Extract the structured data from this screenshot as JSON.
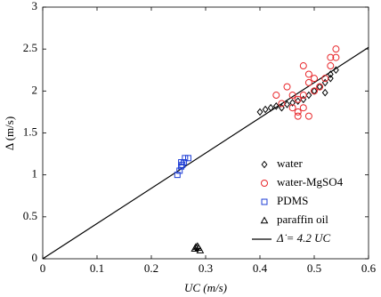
{
  "chart_data": {
    "type": "scatter",
    "xlabel": "UC (m/s)",
    "ylabel": "Δ (m/s)",
    "xlim": [
      0,
      0.6
    ],
    "xticks": [
      0,
      0.1,
      0.2,
      0.3,
      0.4,
      0.5,
      0.6
    ],
    "ylim": [
      0,
      3
    ],
    "yticks": [
      0,
      0.5,
      1,
      1.5,
      2,
      2.5,
      3
    ],
    "grid": false,
    "legend": "lower right",
    "series": [
      {
        "name": "water",
        "color": "#000000",
        "marker": "diamond",
        "x": [
          0.4,
          0.41,
          0.42,
          0.43,
          0.44,
          0.45,
          0.46,
          0.47,
          0.48,
          0.49,
          0.5,
          0.51,
          0.52,
          0.52,
          0.53,
          0.54,
          0.53
        ],
        "values": [
          1.75,
          1.78,
          1.8,
          1.82,
          1.8,
          1.84,
          1.86,
          1.88,
          1.9,
          1.95,
          2.0,
          2.05,
          2.1,
          1.98,
          2.15,
          2.25,
          2.2
        ]
      },
      {
        "name": "water-MgSO4",
        "color": "#e8262a",
        "marker": "circle",
        "x": [
          0.43,
          0.44,
          0.45,
          0.46,
          0.47,
          0.47,
          0.48,
          0.48,
          0.48,
          0.49,
          0.49,
          0.49,
          0.5,
          0.51,
          0.52,
          0.53,
          0.53,
          0.54,
          0.54,
          0.47,
          0.46,
          0.5
        ],
        "values": [
          1.95,
          1.85,
          2.05,
          1.8,
          1.75,
          1.9,
          2.3,
          1.95,
          1.8,
          1.7,
          2.1,
          2.2,
          2.0,
          2.05,
          2.15,
          2.3,
          2.4,
          2.5,
          2.4,
          1.7,
          1.95,
          2.15
        ]
      },
      {
        "name": "PDMS",
        "color": "#1f3fd6",
        "marker": "square",
        "x": [
          0.248,
          0.252,
          0.255,
          0.257,
          0.26,
          0.262,
          0.268,
          0.255
        ],
        "values": [
          1.0,
          1.05,
          1.1,
          1.12,
          1.15,
          1.2,
          1.2,
          1.15
        ]
      },
      {
        "name": "paraffin oil",
        "color": "#000000",
        "marker": "triangle",
        "x": [
          0.28,
          0.285,
          0.29,
          0.282,
          0.287
        ],
        "values": [
          0.12,
          0.15,
          0.1,
          0.14,
          0.13
        ]
      }
    ],
    "fit": {
      "name": "Δ̇ = 4.2 UC",
      "slope": 4.2,
      "color": "#000000"
    }
  }
}
